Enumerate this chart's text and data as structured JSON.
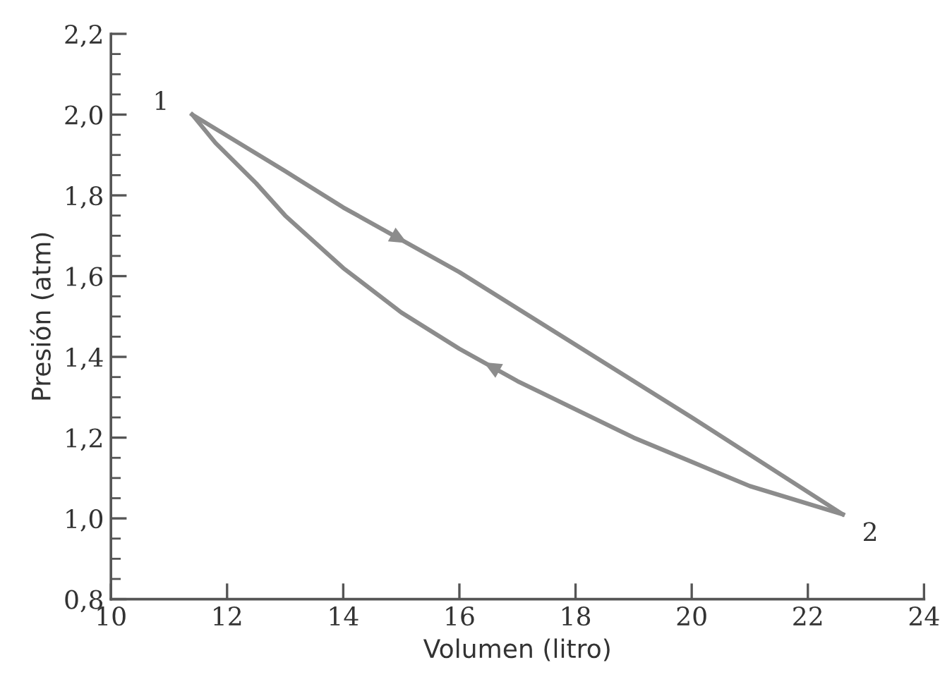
{
  "chart_data": {
    "type": "line",
    "xlabel": "Volumen (litro)",
    "ylabel": "Presión (atm)",
    "xlim": [
      10,
      24
    ],
    "xticks": [
      10,
      12,
      14,
      16,
      18,
      20,
      22,
      24
    ],
    "ylim": [
      0.8,
      2.2
    ],
    "yticks": [
      {
        "value": 0.8,
        "label": "0,8"
      },
      {
        "value": 1.0,
        "label": "1,0"
      },
      {
        "value": 1.2,
        "label": "1,2"
      },
      {
        "value": 1.4,
        "label": "1,4"
      },
      {
        "value": 1.6,
        "label": "1,6"
      },
      {
        "value": 1.8,
        "label": "1,8"
      },
      {
        "value": 2.0,
        "label": "2,0"
      },
      {
        "value": 2.2,
        "label": "2,2"
      }
    ],
    "grid": false,
    "legend": false,
    "marker": "none",
    "line_style": "solid",
    "series": [
      {
        "color": "#8c8c8c",
        "x": [
          11.4,
          13,
          14,
          16,
          18,
          20,
          22.6
        ],
        "values": [
          2.0,
          1.86,
          1.77,
          1.61,
          1.43,
          1.25,
          1.01
        ]
      },
      {
        "color": "#8c8c8c",
        "x": [
          22.6,
          21,
          20,
          19,
          18,
          17,
          16,
          15,
          14,
          13,
          12.5,
          11.8,
          11.4
        ],
        "values": [
          1.01,
          1.08,
          1.14,
          1.2,
          1.27,
          1.34,
          1.42,
          1.51,
          1.62,
          1.75,
          1.83,
          1.93,
          2.0
        ]
      }
    ],
    "annotations": [
      {
        "text": "1",
        "x": 11.4,
        "y": 2.0
      },
      {
        "text": "2",
        "x": 22.6,
        "y": 1.01
      }
    ]
  }
}
